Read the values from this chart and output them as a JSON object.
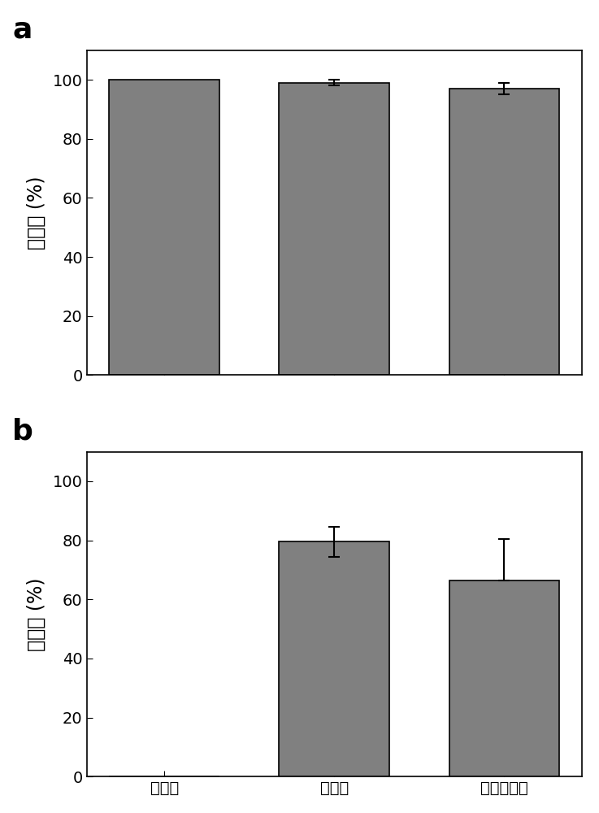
{
  "categories": [
    "氯化钓",
    "氯化馒",
    "壳状珊瑚藻"
  ],
  "panel_a": {
    "values": [
      100.0,
      99.0,
      97.0
    ],
    "errors_upper": [
      0.0,
      1.0,
      2.0
    ],
    "errors_lower": [
      0.0,
      1.0,
      2.0
    ],
    "ylabel": "存活率 (%)",
    "ylim": [
      0,
      110
    ],
    "yticks": [
      0,
      20,
      40,
      60,
      80,
      100
    ],
    "label": "a"
  },
  "panel_b": {
    "values": [
      0.0,
      79.5,
      66.5
    ],
    "errors_upper": [
      0.0,
      5.0,
      14.0
    ],
    "errors_lower": [
      0.0,
      5.0,
      0.0
    ],
    "ylabel": "附着率 (%)",
    "ylim": [
      0,
      110
    ],
    "yticks": [
      0,
      20,
      40,
      60,
      80,
      100
    ],
    "label": "b"
  },
  "bar_color": "#808080",
  "bar_edgecolor": "#000000",
  "bar_width": 0.65,
  "x_positions": [
    0,
    1,
    2
  ],
  "background_color": "#ffffff",
  "tick_fontsize": 14,
  "label_fontsize": 17,
  "panel_label_fontsize": 26,
  "capsize": 5,
  "error_linewidth": 1.5
}
